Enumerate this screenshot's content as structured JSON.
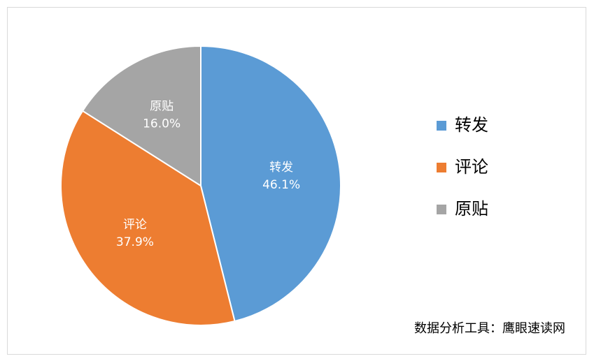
{
  "chart_data": {
    "type": "pie",
    "categories": [
      "转发",
      "评论",
      "原贴"
    ],
    "values": [
      46.1,
      37.9,
      16.0
    ],
    "value_labels": [
      "46.1%",
      "37.9%",
      "16.0%"
    ],
    "colors": [
      "#5b9bd5",
      "#ed7d31",
      "#a5a5a5"
    ],
    "legend": "right",
    "annotation": "数据分析工具：鹰眼速读网"
  }
}
